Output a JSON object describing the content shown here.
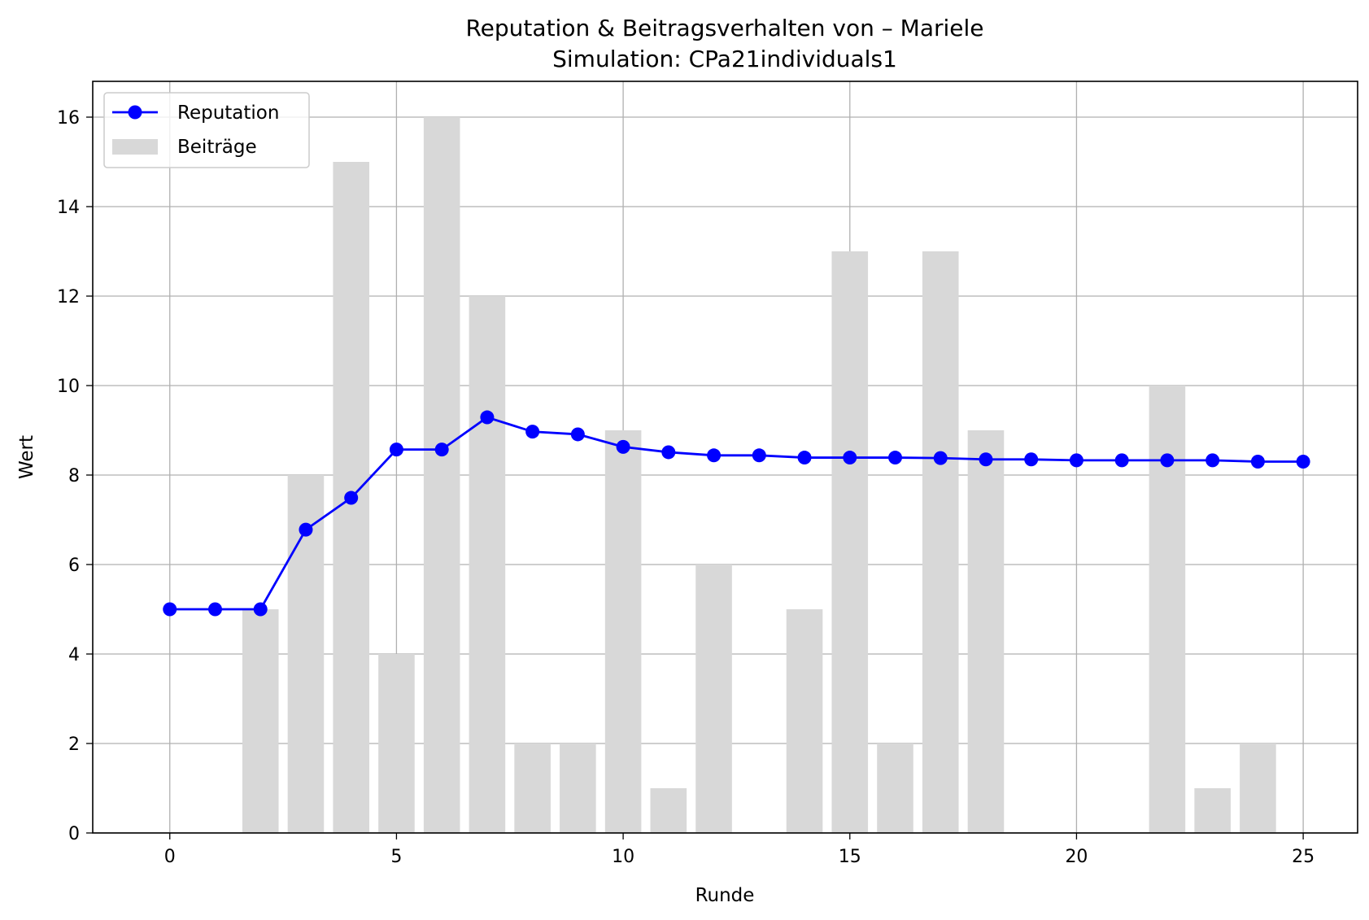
{
  "chart_data": {
    "type": "bar+line",
    "title": "Reputation & Beitragsverhalten von – Mariele",
    "subtitle": "Simulation: CPa21individuals1",
    "xlabel": "Runde",
    "ylabel": "Wert",
    "xlim": [
      -1.7,
      26.2
    ],
    "ylim": [
      0,
      16.8
    ],
    "xticks": [
      "0",
      "5",
      "10",
      "15",
      "20",
      "25"
    ],
    "yticks": [
      "0",
      "2",
      "4",
      "6",
      "8",
      "10",
      "12",
      "14",
      "16"
    ],
    "grid": true,
    "legend": "top-left",
    "x": [
      0,
      1,
      2,
      3,
      4,
      5,
      6,
      7,
      8,
      9,
      10,
      11,
      12,
      13,
      14,
      15,
      16,
      17,
      18,
      19,
      20,
      21,
      22,
      23,
      24,
      25
    ],
    "series": [
      {
        "name": "Reputation",
        "kind": "line",
        "color": "#0000ff",
        "marker": "circle",
        "values": [
          5.0,
          5.0,
          5.0,
          6.78,
          7.49,
          8.57,
          8.57,
          9.29,
          8.97,
          8.91,
          8.63,
          8.51,
          8.44,
          8.44,
          8.39,
          8.39,
          8.39,
          8.38,
          8.35,
          8.35,
          8.33,
          8.33,
          8.33,
          8.33,
          8.3,
          8.3
        ]
      },
      {
        "name": "Beiträge",
        "kind": "bar",
        "color": "#d8d8d8",
        "values": [
          0,
          0,
          5,
          8,
          15,
          4,
          16,
          12,
          2,
          2,
          9,
          1,
          6,
          0,
          5,
          13,
          2,
          13,
          9,
          0,
          0,
          0,
          10,
          1,
          2,
          0
        ]
      }
    ]
  }
}
